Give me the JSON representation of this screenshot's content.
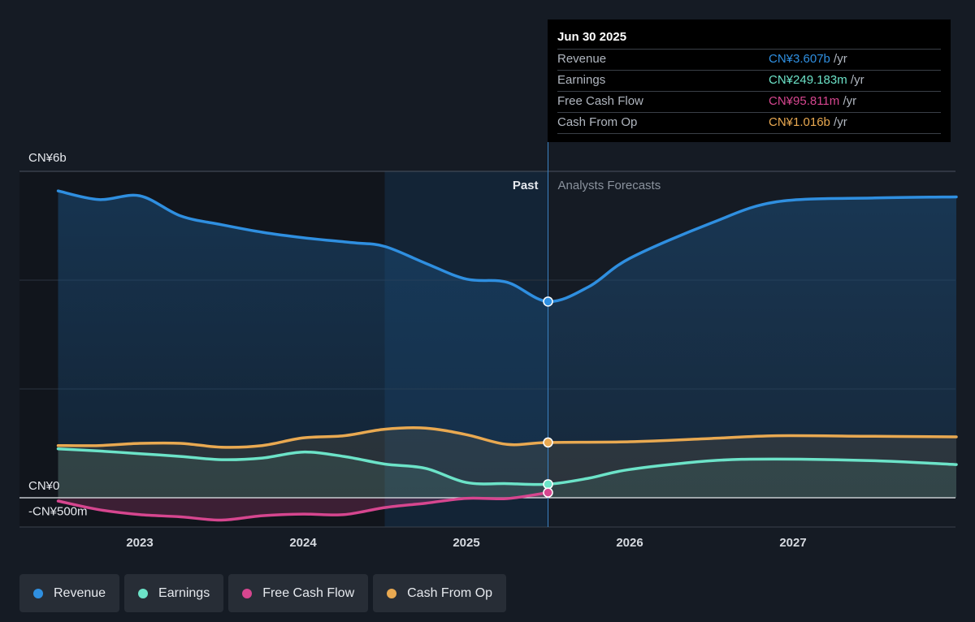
{
  "chart_data": {
    "type": "area",
    "ylim": [
      -500,
      6000
    ],
    "y_ticks": [
      {
        "value": 6000,
        "label": "CN¥6b"
      },
      {
        "value": 0,
        "label": "CN¥0"
      },
      {
        "value": -500,
        "label": "-CN¥500m"
      }
    ],
    "x_ticks": [
      {
        "value": 2023,
        "label": "2023"
      },
      {
        "value": 2024,
        "label": "2024"
      },
      {
        "value": 2025,
        "label": "2025"
      },
      {
        "value": 2026,
        "label": "2026"
      },
      {
        "value": 2027,
        "label": "2027"
      }
    ],
    "xlim": [
      2022.25,
      2028.0
    ],
    "past_label": "Past",
    "forecast_label": "Analysts Forecasts",
    "past_end_x": 2025.5,
    "shaded_band_x": [
      2024.5,
      2025.5
    ],
    "grid": true,
    "series": [
      {
        "name": "Revenue",
        "color": "#2f8fe0",
        "points": [
          [
            2022.5,
            5640
          ],
          [
            2022.75,
            5480
          ],
          [
            2023.0,
            5550
          ],
          [
            2023.25,
            5180
          ],
          [
            2023.5,
            5020
          ],
          [
            2023.75,
            4880
          ],
          [
            2024.0,
            4780
          ],
          [
            2024.3,
            4690
          ],
          [
            2024.5,
            4620
          ],
          [
            2024.75,
            4310
          ],
          [
            2025.0,
            4020
          ],
          [
            2025.25,
            3960
          ],
          [
            2025.5,
            3607
          ],
          [
            2025.75,
            3880
          ],
          [
            2026.0,
            4400
          ],
          [
            2026.5,
            5050
          ],
          [
            2026.9,
            5440
          ],
          [
            2027.5,
            5510
          ],
          [
            2028.0,
            5530
          ]
        ],
        "forecast_from": 2025.5
      },
      {
        "name": "Earnings",
        "color": "#6ce3c8",
        "points": [
          [
            2022.5,
            900
          ],
          [
            2022.75,
            860
          ],
          [
            2023.0,
            810
          ],
          [
            2023.25,
            760
          ],
          [
            2023.5,
            700
          ],
          [
            2023.75,
            730
          ],
          [
            2024.0,
            840
          ],
          [
            2024.25,
            760
          ],
          [
            2024.5,
            620
          ],
          [
            2024.75,
            540
          ],
          [
            2025.0,
            280
          ],
          [
            2025.25,
            260
          ],
          [
            2025.5,
            249
          ],
          [
            2025.75,
            360
          ],
          [
            2026.0,
            520
          ],
          [
            2026.5,
            680
          ],
          [
            2026.9,
            710
          ],
          [
            2027.5,
            680
          ],
          [
            2028.0,
            610
          ]
        ],
        "forecast_from": 2025.5
      },
      {
        "name": "Free Cash Flow",
        "color": "#d6468f",
        "points": [
          [
            2022.5,
            -60
          ],
          [
            2022.75,
            -220
          ],
          [
            2023.0,
            -310
          ],
          [
            2023.25,
            -350
          ],
          [
            2023.5,
            -410
          ],
          [
            2023.75,
            -330
          ],
          [
            2024.0,
            -300
          ],
          [
            2024.25,
            -310
          ],
          [
            2024.5,
            -180
          ],
          [
            2024.75,
            -100
          ],
          [
            2025.0,
            -10
          ],
          [
            2025.25,
            -15
          ],
          [
            2025.5,
            96
          ]
        ],
        "forecast_from": null
      },
      {
        "name": "Cash From Op",
        "color": "#e9a951",
        "points": [
          [
            2022.5,
            960
          ],
          [
            2022.75,
            960
          ],
          [
            2023.0,
            1000
          ],
          [
            2023.25,
            1000
          ],
          [
            2023.5,
            930
          ],
          [
            2023.75,
            960
          ],
          [
            2024.0,
            1100
          ],
          [
            2024.25,
            1140
          ],
          [
            2024.5,
            1260
          ],
          [
            2024.75,
            1280
          ],
          [
            2025.0,
            1160
          ],
          [
            2025.25,
            980
          ],
          [
            2025.5,
            1016
          ],
          [
            2026.0,
            1030
          ],
          [
            2026.5,
            1090
          ],
          [
            2026.9,
            1140
          ],
          [
            2027.5,
            1130
          ],
          [
            2028.0,
            1120
          ]
        ],
        "forecast_from": 2025.5
      }
    ],
    "highlight_x": 2025.5,
    "highlight_values": [
      3607,
      249,
      96,
      1016
    ]
  },
  "tooltip": {
    "date": "Jun 30 2025",
    "rows": [
      {
        "label": "Revenue",
        "value": "CN¥3.607b",
        "unit": "/yr",
        "color": "#2f8fe0"
      },
      {
        "label": "Earnings",
        "value": "CN¥249.183m",
        "unit": "/yr",
        "color": "#6ce3c8"
      },
      {
        "label": "Free Cash Flow",
        "value": "CN¥95.811m",
        "unit": "/yr",
        "color": "#d6468f"
      },
      {
        "label": "Cash From Op",
        "value": "CN¥1.016b",
        "unit": "/yr",
        "color": "#e9a951"
      }
    ]
  },
  "legend": [
    {
      "label": "Revenue",
      "color": "#2f8fe0"
    },
    {
      "label": "Earnings",
      "color": "#6ce3c8"
    },
    {
      "label": "Free Cash Flow",
      "color": "#d6468f"
    },
    {
      "label": "Cash From Op",
      "color": "#e9a951"
    }
  ]
}
